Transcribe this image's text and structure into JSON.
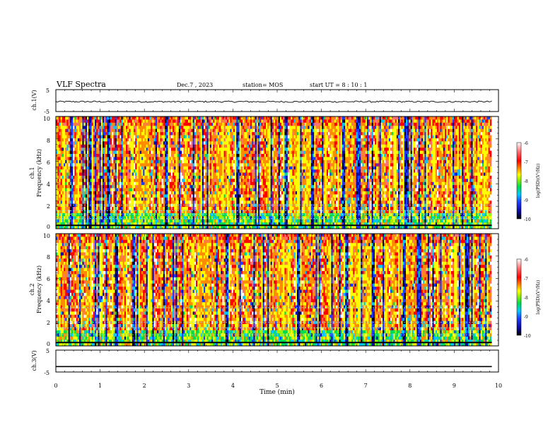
{
  "header": {
    "title": "VLF Spectra",
    "date": "Dec.7 , 2023",
    "station": "station= MOS",
    "start": "start UT =   8 : 10 : 1"
  },
  "colors": {
    "scale": [
      "#000000",
      "#0a0aa0",
      "#1e3cff",
      "#00c8ff",
      "#00dc50",
      "#a0f000",
      "#ffff00",
      "#ff8c00",
      "#ff0000",
      "#ff7070",
      "#ffffff"
    ]
  },
  "chart_data": [
    {
      "type": "line",
      "id": "ch1-waveform",
      "ylabel": "ch.1(V)",
      "ylim": [
        -5,
        5
      ],
      "yticks": [
        "5",
        "-5"
      ],
      "xlim": [
        0,
        10
      ],
      "series": [
        {
          "level": -0.5,
          "noise": 0.35
        }
      ]
    },
    {
      "type": "heatmap",
      "id": "ch1-spectrogram",
      "ylabel_line1": "ch.1",
      "ylabel_line2": "Frequency  (kHz)",
      "ylim": [
        0,
        10
      ],
      "yticks": [
        "0",
        "2",
        "4",
        "6",
        "8",
        "10"
      ],
      "xlim": [
        0,
        9.85
      ],
      "colorbar": {
        "label": "log(PSD)(V²/Hz)",
        "ticks": [
          "-6",
          "-7",
          "-8",
          "-9",
          "-10"
        ],
        "range": [
          -10,
          -6
        ]
      },
      "bands_khz": [
        0.3,
        0.9,
        1.3,
        1.6,
        2.1
      ]
    },
    {
      "type": "heatmap",
      "id": "ch2-spectrogram",
      "ylabel_line1": "ch.2",
      "ylabel_line2": "Frequency  (kHz)",
      "ylim": [
        0,
        10
      ],
      "yticks": [
        "0",
        "2",
        "4",
        "6",
        "8",
        "10"
      ],
      "xlim": [
        0,
        9.85
      ],
      "colorbar": {
        "label": "log(PSD)(V²/Hz)",
        "ticks": [
          "-6",
          "-7",
          "-8",
          "-9",
          "-10"
        ],
        "range": [
          -10,
          -6
        ]
      },
      "bands_khz": [
        0.3,
        1.0,
        1.6,
        2.1,
        3.4
      ]
    },
    {
      "type": "line",
      "id": "ch3-waveform",
      "ylabel": "ch.3(V)",
      "ylim": [
        -5,
        5
      ],
      "yticks": [
        "5",
        "-5"
      ],
      "xlim": [
        0,
        10
      ],
      "xlabel": "Time  (min)",
      "xticks": [
        "0",
        "1",
        "2",
        "3",
        "4",
        "5",
        "6",
        "7",
        "8",
        "9",
        "10"
      ],
      "series": [
        {
          "level": -2.5,
          "noise": 0
        }
      ]
    }
  ]
}
